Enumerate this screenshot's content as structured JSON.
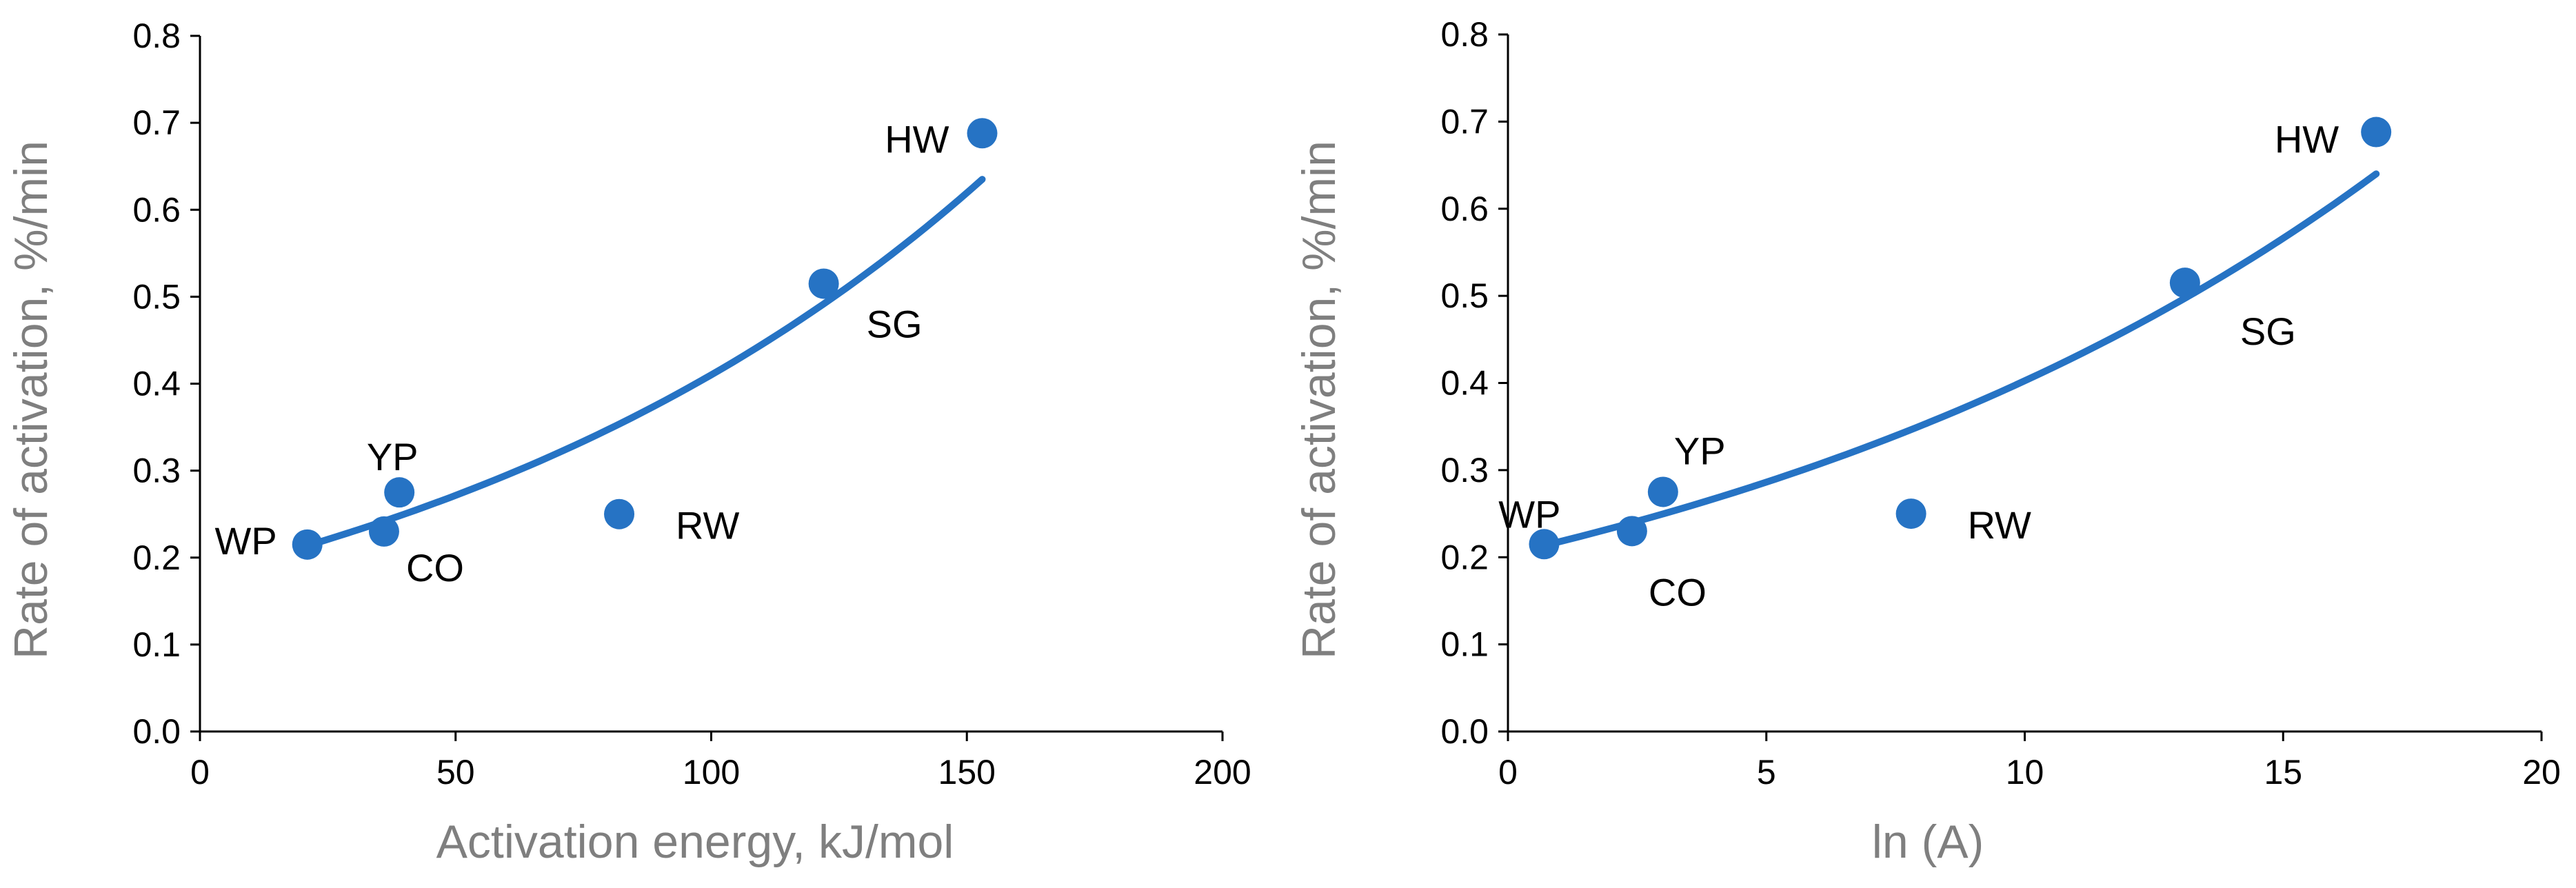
{
  "colors": {
    "series": "#2673c4",
    "axis_title": "#7f7f7f",
    "axis": "#000000"
  },
  "chart_data": [
    {
      "type": "scatter",
      "xlabel": "Activation energy,  kJ/mol",
      "ylabel": "Rate of activation,  %/min",
      "xlim": [
        0,
        200
      ],
      "ylim": [
        0.0,
        0.8
      ],
      "xticks": [
        "0",
        "50",
        "100",
        "150",
        "200"
      ],
      "yticks": [
        "0.0",
        "0.1",
        "0.2",
        "0.3",
        "0.4",
        "0.5",
        "0.6",
        "0.7",
        "0.8"
      ],
      "grid": false,
      "points": [
        {
          "label": "WP",
          "x": 21,
          "y": 0.215
        },
        {
          "label": "CO",
          "x": 36,
          "y": 0.23
        },
        {
          "label": "YP",
          "x": 39,
          "y": 0.275
        },
        {
          "label": "RW",
          "x": 82,
          "y": 0.25
        },
        {
          "label": "SG",
          "x": 122,
          "y": 0.515
        },
        {
          "label": "HW",
          "x": 153,
          "y": 0.688
        }
      ],
      "trendline": {
        "type": "exponential",
        "x_start": 20,
        "x_end": 153,
        "y_start": 0.212,
        "y_end": 0.635
      }
    },
    {
      "type": "scatter",
      "xlabel": "ln (A)",
      "ylabel": "Rate of activation,  %/min",
      "xlim": [
        0,
        20
      ],
      "ylim": [
        0.0,
        0.8
      ],
      "xticks": [
        "0",
        "5",
        "10",
        "15",
        "20"
      ],
      "yticks": [
        "0.0",
        "0.1",
        "0.2",
        "0.3",
        "0.4",
        "0.5",
        "0.6",
        "0.7",
        "0.8"
      ],
      "grid": false,
      "points": [
        {
          "label": "WP",
          "x": 0.7,
          "y": 0.215
        },
        {
          "label": "CO",
          "x": 2.4,
          "y": 0.23
        },
        {
          "label": "YP",
          "x": 3.0,
          "y": 0.275
        },
        {
          "label": "RW",
          "x": 7.8,
          "y": 0.25
        },
        {
          "label": "SG",
          "x": 13.1,
          "y": 0.515
        },
        {
          "label": "HW",
          "x": 16.8,
          "y": 0.688
        }
      ],
      "trendline": {
        "type": "exponential",
        "x_start": 0.6,
        "x_end": 16.8,
        "y_start": 0.212,
        "y_end": 0.64
      }
    }
  ]
}
